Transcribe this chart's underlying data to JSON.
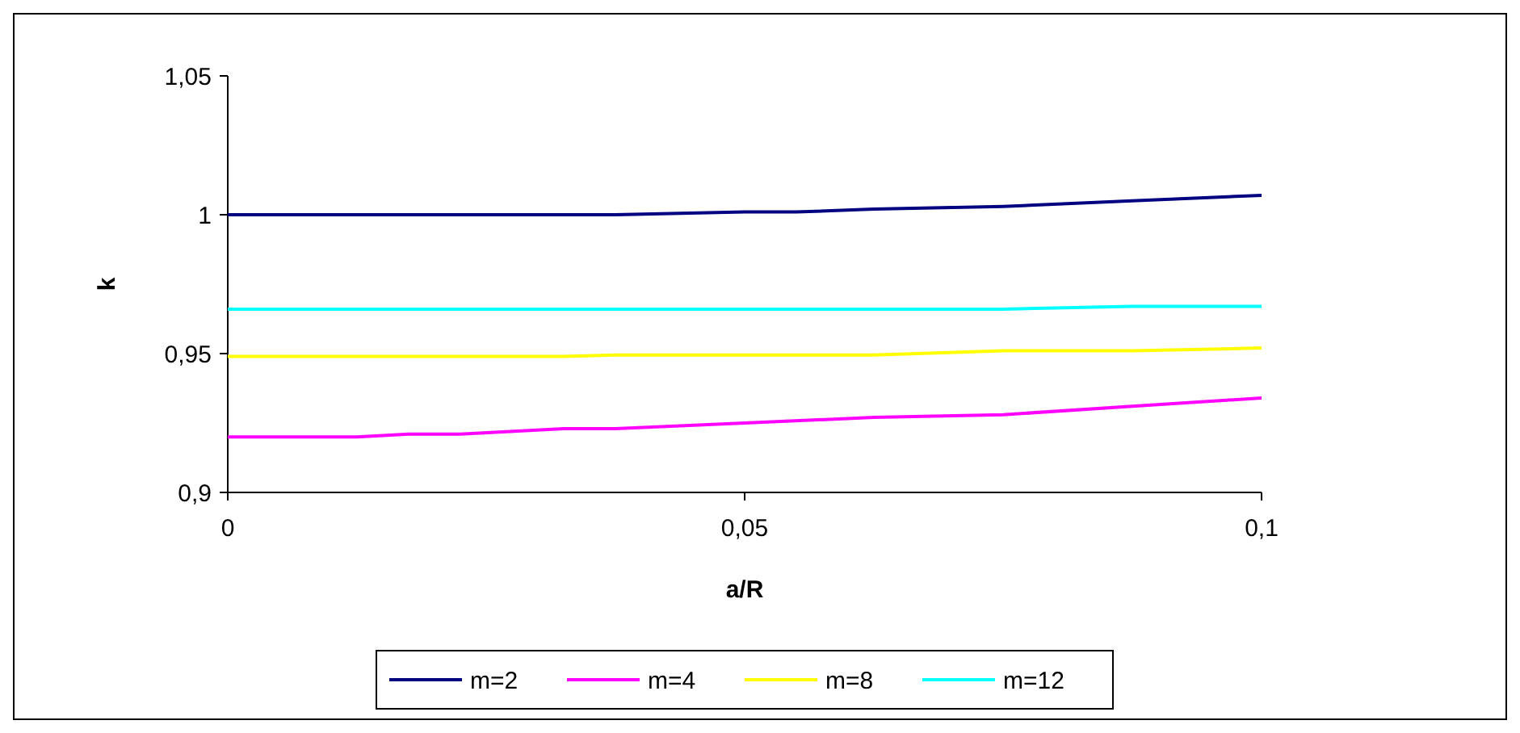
{
  "chart_data": {
    "type": "line",
    "xlabel": "a/R",
    "ylabel": "k",
    "xlim": [
      0,
      0.1
    ],
    "ylim": [
      0.9,
      1.05
    ],
    "xticks": [
      0,
      {
        "value": 0.05,
        "label": "0,05"
      },
      {
        "value": 0.1,
        "label": "0,1"
      }
    ],
    "yticks": [
      {
        "value": 0.9,
        "label": "0,9"
      },
      {
        "value": 0.95,
        "label": "0,95"
      },
      1,
      {
        "value": 1.05,
        "label": "1,05"
      }
    ],
    "grid": false,
    "legend": "bottom",
    "marker": "none",
    "line_style": "solid",
    "series": [
      {
        "name": "m=2",
        "color": "#000080",
        "x": [
          0,
          0.0125,
          0.0375,
          0.05,
          0.055,
          0.0625,
          0.075,
          0.0875,
          0.1
        ],
        "values": [
          1,
          1,
          1,
          1.001,
          1.001,
          1.002,
          1.003,
          1.005,
          1.007
        ]
      },
      {
        "name": "m=4",
        "color": "#ff00ff",
        "x": [
          0,
          0.0125,
          0.0175,
          0.0225,
          0.0325,
          0.0375,
          0.05,
          0.0625,
          0.075,
          0.0875,
          0.1
        ],
        "values": [
          0.92,
          0.92,
          0.921,
          0.921,
          0.923,
          0.923,
          0.925,
          0.927,
          0.928,
          0.931,
          0.934
        ]
      },
      {
        "name": "m=8",
        "color": "#ffff00",
        "x": [
          0,
          0.0325,
          0.0375,
          0.0625,
          0.075,
          0.0875,
          0.1
        ],
        "values": [
          0.949,
          0.949,
          0.9495,
          0.9495,
          0.951,
          0.951,
          0.952
        ]
      },
      {
        "name": "m=12",
        "color": "#00ffff",
        "x": [
          0,
          0.075,
          0.0875,
          0.1
        ],
        "values": [
          0.966,
          0.966,
          0.967,
          0.967
        ]
      }
    ]
  }
}
